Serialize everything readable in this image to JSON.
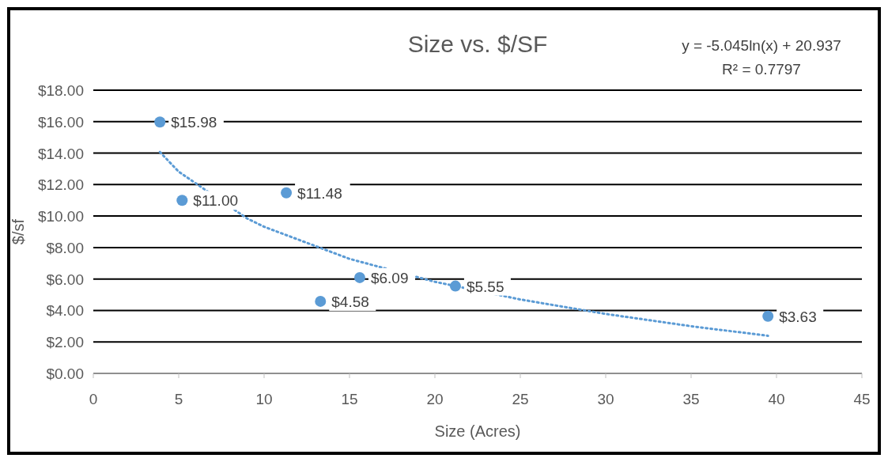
{
  "chart_data": {
    "type": "scatter",
    "title": "Size vs. $/SF",
    "xlabel": "Size (Acres)",
    "ylabel": "$/sf",
    "annotations": [
      "y = -5.045ln(x) + 20.937",
      "R² = 0.7797"
    ],
    "xlim": [
      0,
      45
    ],
    "xticks": [
      0,
      5,
      10,
      15,
      20,
      25,
      30,
      35,
      40,
      45
    ],
    "ylim": [
      0,
      18
    ],
    "yticks": [
      {
        "value": 0,
        "label": "$0.00"
      },
      {
        "value": 2,
        "label": "$2.00"
      },
      {
        "value": 4,
        "label": "$4.00"
      },
      {
        "value": 6,
        "label": "$6.00"
      },
      {
        "value": 8,
        "label": "$8.00"
      },
      {
        "value": 10,
        "label": "$10.00"
      },
      {
        "value": 12,
        "label": "$12.00"
      },
      {
        "value": 14,
        "label": "$14.00"
      },
      {
        "value": 16,
        "label": "$16.00"
      },
      {
        "value": 18,
        "label": "$18.00"
      }
    ],
    "grid": "y",
    "series": [
      {
        "color": "#5b9bd5",
        "marker": "circle",
        "x": [
          3.9,
          5.2,
          11.3,
          13.3,
          15.6,
          21.2,
          39.5
        ],
        "values": [
          15.98,
          11.0,
          11.48,
          4.58,
          6.09,
          5.55,
          3.63
        ],
        "value_labels": [
          "$15.98",
          "$11.00",
          "$11.48",
          "$4.58",
          "$6.09",
          "$5.55",
          "$3.63"
        ]
      },
      {
        "type": "line",
        "color": "#5b9bd5",
        "marker": "none",
        "line_style": "dotted",
        "x": [
          3.9,
          5,
          9,
          10,
          15,
          20,
          25,
          30,
          35,
          39.5
        ],
        "values": [
          14.07,
          12.82,
          9.85,
          9.32,
          7.28,
          5.82,
          4.7,
          3.78,
          3.0,
          2.39
        ]
      }
    ]
  }
}
